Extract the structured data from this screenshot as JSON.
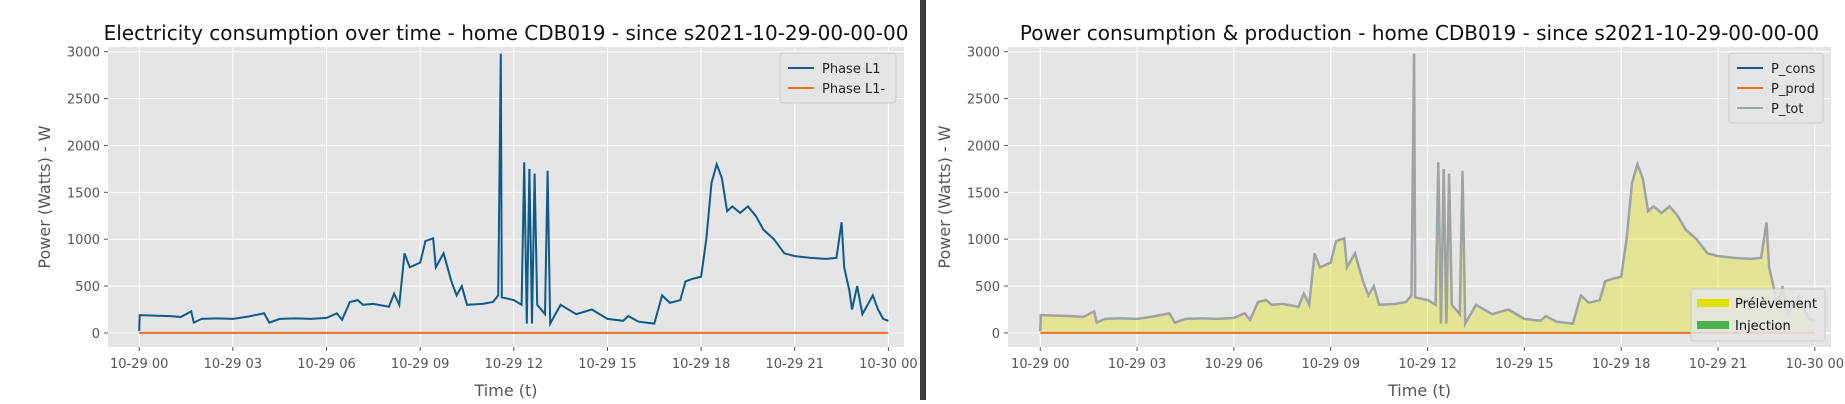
{
  "chart_data": [
    {
      "type": "line",
      "title": "Electricity consumption over time - home CDB019 - since s2021-10-29-00-00-00",
      "xlabel": "Time (t)",
      "ylabel": "Power (Watts) - W",
      "xlim": [
        "2021-10-28 23:00",
        "2021-10-30 00:30"
      ],
      "ylim": [
        -150,
        3050
      ],
      "x_ticks": [
        "10-29 00",
        "10-29 03",
        "10-29 06",
        "10-29 09",
        "10-29 12",
        "10-29 15",
        "10-29 18",
        "10-29 21",
        "10-30 00"
      ],
      "y_ticks": [
        0,
        500,
        1000,
        1500,
        2000,
        2500,
        3000
      ],
      "grid": true,
      "legend": "top-right",
      "series": [
        {
          "name": "Phase L1",
          "color": "#0e5a8a",
          "points": [
            [
              "2021-10-29 00:00",
              20
            ],
            [
              "2021-10-29 00:01",
              190
            ],
            [
              "2021-10-29 00:30",
              185
            ],
            [
              "2021-10-29 01:00",
              180
            ],
            [
              "2021-10-29 01:20",
              170
            ],
            [
              "2021-10-29 01:40",
              230
            ],
            [
              "2021-10-29 01:45",
              110
            ],
            [
              "2021-10-29 02:00",
              150
            ],
            [
              "2021-10-29 02:30",
              155
            ],
            [
              "2021-10-29 03:00",
              150
            ],
            [
              "2021-10-29 03:30",
              175
            ],
            [
              "2021-10-29 04:00",
              210
            ],
            [
              "2021-10-29 04:10",
              110
            ],
            [
              "2021-10-29 04:30",
              150
            ],
            [
              "2021-10-29 05:00",
              155
            ],
            [
              "2021-10-29 05:30",
              150
            ],
            [
              "2021-10-29 06:00",
              160
            ],
            [
              "2021-10-29 06:20",
              210
            ],
            [
              "2021-10-29 06:30",
              140
            ],
            [
              "2021-10-29 06:45",
              330
            ],
            [
              "2021-10-29 07:00",
              350
            ],
            [
              "2021-10-29 07:10",
              300
            ],
            [
              "2021-10-29 07:30",
              310
            ],
            [
              "2021-10-29 08:00",
              280
            ],
            [
              "2021-10-29 08:10",
              420
            ],
            [
              "2021-10-29 08:20",
              300
            ],
            [
              "2021-10-29 08:30",
              850
            ],
            [
              "2021-10-29 08:40",
              700
            ],
            [
              "2021-10-29 09:00",
              750
            ],
            [
              "2021-10-29 09:10",
              980
            ],
            [
              "2021-10-29 09:25",
              1010
            ],
            [
              "2021-10-29 09:30",
              700
            ],
            [
              "2021-10-29 09:45",
              850
            ],
            [
              "2021-10-29 10:00",
              550
            ],
            [
              "2021-10-29 10:10",
              400
            ],
            [
              "2021-10-29 10:20",
              500
            ],
            [
              "2021-10-29 10:30",
              300
            ],
            [
              "2021-10-29 11:00",
              310
            ],
            [
              "2021-10-29 11:20",
              330
            ],
            [
              "2021-10-29 11:30",
              400
            ],
            [
              "2021-10-29 11:35",
              2980
            ],
            [
              "2021-10-29 11:37",
              380
            ],
            [
              "2021-10-29 12:00",
              350
            ],
            [
              "2021-10-29 12:15",
              300
            ],
            [
              "2021-10-29 12:20",
              1820
            ],
            [
              "2021-10-29 12:25",
              100
            ],
            [
              "2021-10-29 12:30",
              1750
            ],
            [
              "2021-10-29 12:35",
              100
            ],
            [
              "2021-10-29 12:40",
              1700
            ],
            [
              "2021-10-29 12:45",
              300
            ],
            [
              "2021-10-29 13:00",
              200
            ],
            [
              "2021-10-29 13:05",
              1730
            ],
            [
              "2021-10-29 13:10",
              100
            ],
            [
              "2021-10-29 13:30",
              300
            ],
            [
              "2021-10-29 14:00",
              200
            ],
            [
              "2021-10-29 14:30",
              250
            ],
            [
              "2021-10-29 15:00",
              150
            ],
            [
              "2021-10-29 15:30",
              130
            ],
            [
              "2021-10-29 15:40",
              180
            ],
            [
              "2021-10-29 16:00",
              120
            ],
            [
              "2021-10-29 16:30",
              100
            ],
            [
              "2021-10-29 16:45",
              400
            ],
            [
              "2021-10-29 17:00",
              320
            ],
            [
              "2021-10-29 17:20",
              350
            ],
            [
              "2021-10-29 17:30",
              550
            ],
            [
              "2021-10-29 17:45",
              580
            ],
            [
              "2021-10-29 18:00",
              600
            ],
            [
              "2021-10-29 18:10",
              1000
            ],
            [
              "2021-10-29 18:20",
              1600
            ],
            [
              "2021-10-29 18:30",
              1800
            ],
            [
              "2021-10-29 18:40",
              1650
            ],
            [
              "2021-10-29 18:50",
              1300
            ],
            [
              "2021-10-29 19:00",
              1350
            ],
            [
              "2021-10-29 19:15",
              1280
            ],
            [
              "2021-10-29 19:30",
              1350
            ],
            [
              "2021-10-29 19:45",
              1250
            ],
            [
              "2021-10-29 20:00",
              1100
            ],
            [
              "2021-10-29 20:20",
              1000
            ],
            [
              "2021-10-29 20:40",
              850
            ],
            [
              "2021-10-29 21:00",
              820
            ],
            [
              "2021-10-29 21:30",
              800
            ],
            [
              "2021-10-29 22:00",
              790
            ],
            [
              "2021-10-29 22:20",
              800
            ],
            [
              "2021-10-29 22:30",
              1180
            ],
            [
              "2021-10-29 22:35",
              700
            ],
            [
              "2021-10-29 22:45",
              450
            ],
            [
              "2021-10-29 22:50",
              250
            ],
            [
              "2021-10-29 23:00",
              500
            ],
            [
              "2021-10-29 23:10",
              200
            ],
            [
              "2021-10-29 23:30",
              400
            ],
            [
              "2021-10-29 23:40",
              250
            ],
            [
              "2021-10-29 23:50",
              150
            ],
            [
              "2021-10-30 00:00",
              130
            ]
          ]
        },
        {
          "name": "Phase L1-",
          "color": "#e8722c",
          "points": [
            [
              "2021-10-29 00:00",
              0
            ],
            [
              "2021-10-30 00:00",
              0
            ]
          ]
        }
      ]
    },
    {
      "type": "area",
      "title": "Power consumption & production - home CDB019 - since s2021-10-29-00-00-00",
      "xlabel": "Time (t)",
      "ylabel": "Power (Watts) - W",
      "xlim": [
        "2021-10-28 23:00",
        "2021-10-30 00:30"
      ],
      "ylim": [
        -150,
        3050
      ],
      "x_ticks": [
        "10-29 00",
        "10-29 03",
        "10-29 06",
        "10-29 09",
        "10-29 12",
        "10-29 15",
        "10-29 18",
        "10-29 21",
        "10-30 00"
      ],
      "y_ticks": [
        0,
        500,
        1000,
        1500,
        2000,
        2500,
        3000
      ],
      "grid": true,
      "legend": "top-right",
      "legend2": "bottom-right",
      "series": [
        {
          "name": "P_cons",
          "color": "#0e5a8a",
          "visible": false
        },
        {
          "name": "P_prod",
          "color": "#e8722c",
          "points": [
            [
              "2021-10-29 00:00",
              0
            ],
            [
              "2021-10-30 00:00",
              0
            ]
          ]
        },
        {
          "name": "P_tot",
          "color": "#9ea3a5",
          "same_as_series_of_chart": 0
        }
      ],
      "fills": [
        {
          "name": "Prélèvement",
          "color": "#e1e100",
          "opacity": 0.35
        },
        {
          "name": "Injection",
          "color": "#4cb04c",
          "opacity": 0.35
        }
      ]
    }
  ]
}
